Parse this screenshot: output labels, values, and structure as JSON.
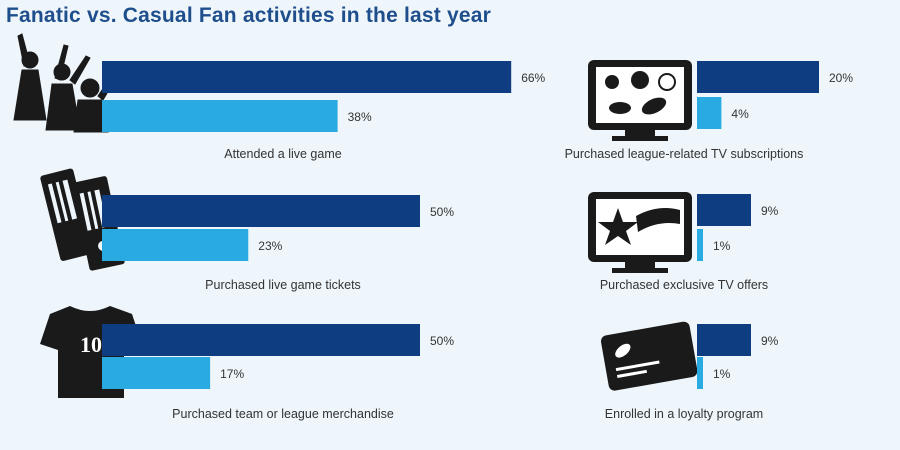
{
  "title": "Fanatic vs. Casual Fan activities in the last year",
  "colors": {
    "fanatic": "#0f3d82",
    "casual": "#29abe2",
    "icon": "#1a1a1a",
    "background": "#eef6fb"
  },
  "chart_data": [
    {
      "type": "bar",
      "orientation": "horizontal",
      "title": "Fanatic vs. Casual Fan activities in the last year",
      "series_names": [
        "Fanatic",
        "Casual"
      ],
      "value_unit": "%",
      "xlim": [
        0,
        100
      ],
      "groups": [
        {
          "label": "Attended a live game",
          "icon": "cheering-fans-icon",
          "fanatic": 66,
          "casual": 38,
          "fanatic_label": "66%",
          "casual_label": "38%"
        },
        {
          "label": "Purchased live game tickets",
          "icon": "tickets-icon",
          "fanatic": 50,
          "casual": 23,
          "fanatic_label": "50%",
          "casual_label": "23%"
        },
        {
          "label": "Purchased team or league merchandise",
          "icon": "jersey-icon",
          "fanatic": 50,
          "casual": 17,
          "fanatic_label": "50%",
          "casual_label": "17%",
          "icon_text": "10"
        },
        {
          "label": "Purchased league-related TV subscriptions",
          "icon": "tv-sports-balls-icon",
          "fanatic": 20,
          "casual": 4,
          "fanatic_label": "20%",
          "casual_label": "4%"
        },
        {
          "label": "Purchased exclusive TV offers",
          "icon": "tv-star-icon",
          "fanatic": 9,
          "casual": 1,
          "fanatic_label": "9%",
          "casual_label": "1%"
        },
        {
          "label": "Enrolled in a loyalty program",
          "icon": "loyalty-card-icon",
          "fanatic": 9,
          "casual": 1,
          "fanatic_label": "9%",
          "casual_label": "1%"
        }
      ]
    }
  ]
}
